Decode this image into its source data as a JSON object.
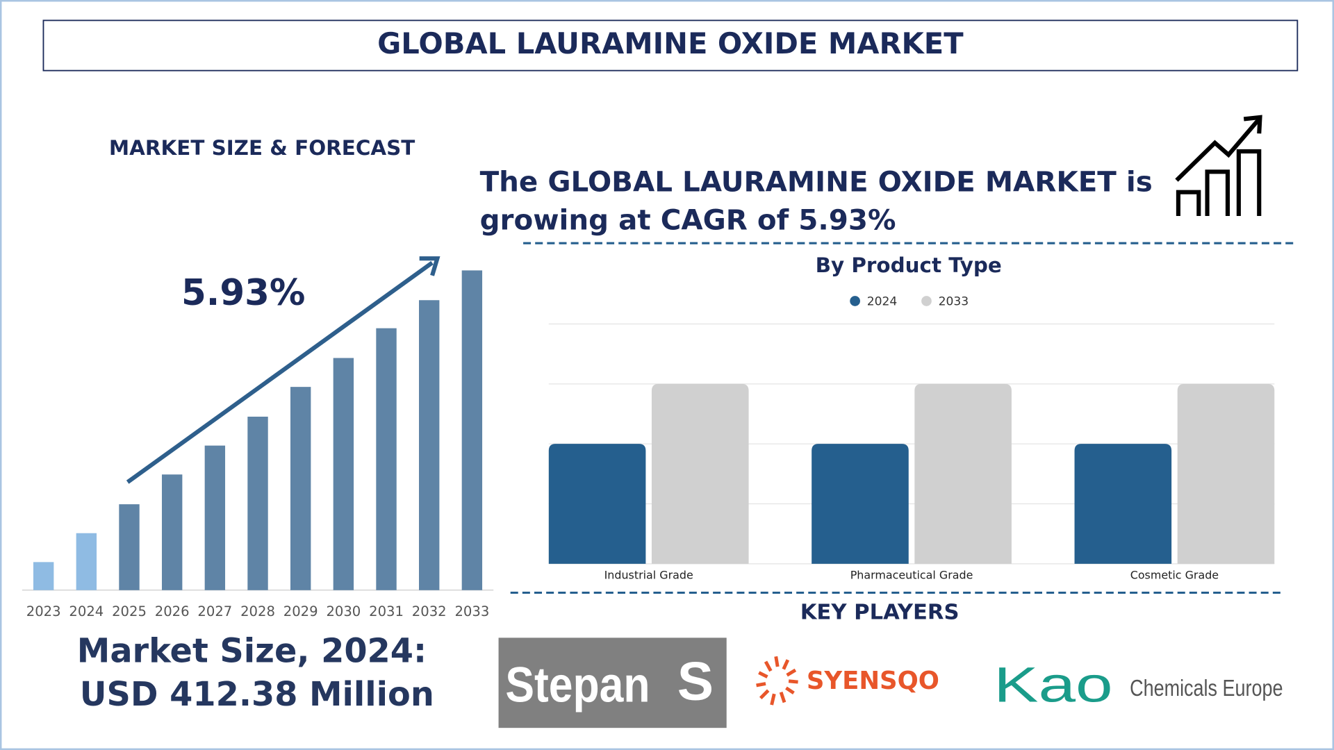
{
  "header": {
    "title": "GLOBAL LAURAMINE OXIDE MARKET"
  },
  "summary": {
    "heading": "MARKET SIZE & FORECAST",
    "cagr_statement_lines": [
      "The GLOBAL LAURAMINE OXIDE MARKET is",
      "growing at CAGR of 5.93%"
    ],
    "market_size_lines": [
      "Market Size, 2024:",
      "USD 412.38 Million"
    ]
  },
  "chart_data": [
    {
      "type": "bar",
      "categories": [
        "2023",
        "2024",
        "2025",
        "2026",
        "2027",
        "2028",
        "2029",
        "2030",
        "2031",
        "2032",
        "2033"
      ],
      "values": [
        33,
        67,
        101,
        136,
        170,
        204,
        239,
        273,
        308,
        341,
        376
      ],
      "colors": [
        "#8fbbe3",
        "#8fbbe3",
        "#5f84a6",
        "#5f84a6",
        "#5f84a6",
        "#5f84a6",
        "#5f84a6",
        "#5f84a6",
        "#5f84a6",
        "#5f84a6",
        "#5f84a6"
      ],
      "ylim": [
        0,
        400
      ],
      "annotation": "5.93%"
    },
    {
      "type": "bar",
      "title": "By Product Type",
      "categories": [
        "Industrial Grade",
        "Pharmaceutical Grade",
        "Cosmetic Grade"
      ],
      "series": [
        {
          "name": "2024",
          "color": "#255f8e",
          "values": [
            2,
            2,
            2
          ]
        },
        {
          "name": "2033",
          "color": "#d0d0d0",
          "values": [
            3,
            3,
            3
          ]
        }
      ],
      "ylim": [
        0,
        4
      ],
      "yticks": [
        0,
        1,
        2,
        3,
        4
      ],
      "grid": true
    }
  ],
  "key_players": {
    "title": "KEY PLAYERS",
    "logos": [
      "Stepan",
      "SYENSQO",
      "Kao",
      "Chemicals Europe"
    ]
  }
}
